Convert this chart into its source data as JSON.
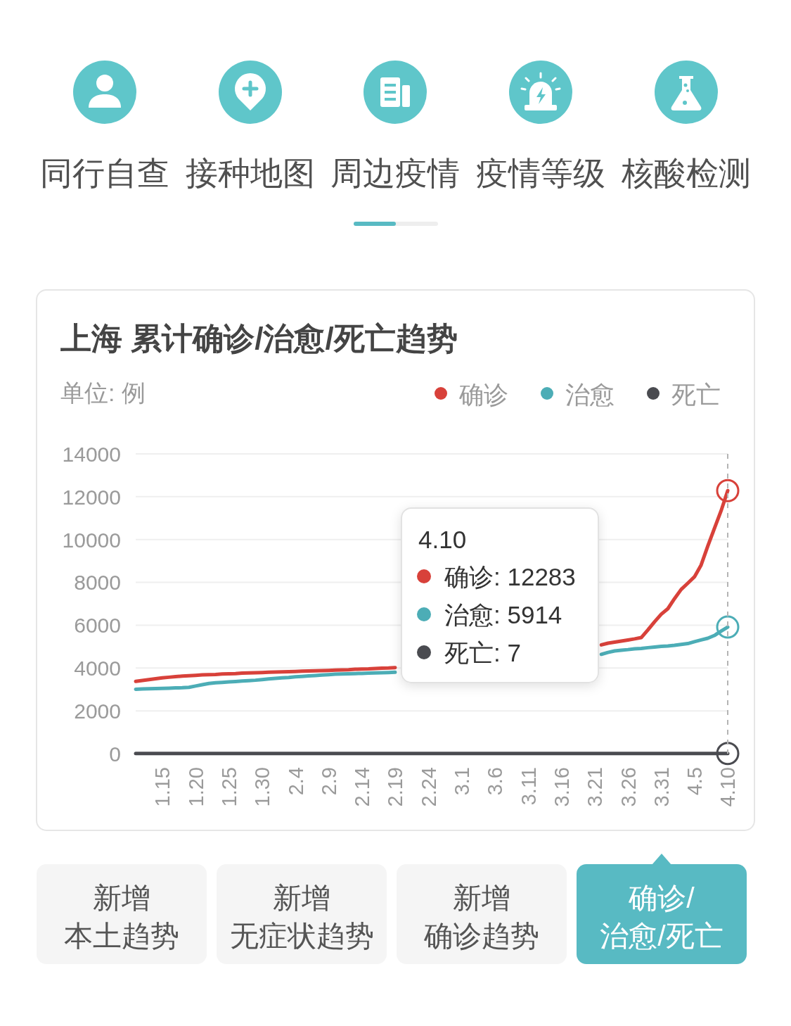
{
  "chart_data": {
    "type": "line",
    "title": "上海 累计确诊/治愈/死亡趋势",
    "ylabel": "单位: 例",
    "x": [
      "--01-11",
      "--01-12",
      "--01-13",
      "--01-14",
      "--01-15",
      "--01-16",
      "--01-17",
      "--01-18",
      "--01-19",
      "--01-20",
      "--01-21",
      "--01-22",
      "--01-23",
      "--01-24",
      "--01-25",
      "--01-26",
      "--01-27",
      "--01-28",
      "--01-29",
      "--01-30",
      "--01-31",
      "--02-01",
      "--02-02",
      "--02-03",
      "--02-04",
      "--02-05",
      "--02-06",
      "--02-07",
      "--02-08",
      "--02-09",
      "--02-10",
      "--02-11",
      "--02-12",
      "--02-13",
      "--02-14",
      "--02-15",
      "--02-16",
      "--02-17",
      "--02-18",
      "--02-19",
      "--02-20",
      "--02-21",
      "--02-22",
      "--02-23",
      "--02-24",
      "--02-25",
      "--02-26",
      "--02-27",
      "--02-28",
      "--03-01",
      "--03-02",
      "--03-03",
      "--03-04",
      "--03-05",
      "--03-06",
      "--03-07",
      "--03-08",
      "--03-09",
      "--03-10",
      "--03-11",
      "--03-12",
      "--03-13",
      "--03-14",
      "--03-15",
      "--03-16",
      "--03-17",
      "--03-18",
      "--03-19",
      "--03-20",
      "--03-21",
      "--03-22",
      "--03-23",
      "--03-24",
      "--03-25",
      "--03-26",
      "--03-27",
      "--03-28",
      "--03-29",
      "--03-30",
      "--03-31",
      "--04-01",
      "--04-02",
      "--04-03",
      "--04-04",
      "--04-05",
      "--04-06",
      "--04-07",
      "--04-08",
      "--04-09",
      "--04-10"
    ],
    "xlim": [
      "--01-11",
      "--04-10"
    ],
    "xticks": [
      {
        "value": "--01-15",
        "label": "1.15"
      },
      {
        "value": "--01-20",
        "label": "1.20"
      },
      {
        "value": "--01-25",
        "label": "1.25"
      },
      {
        "value": "--01-30",
        "label": "1.30"
      },
      {
        "value": "--02-04",
        "label": "2.4"
      },
      {
        "value": "--02-09",
        "label": "2.9"
      },
      {
        "value": "--02-14",
        "label": "2.14"
      },
      {
        "value": "--02-19",
        "label": "2.19"
      },
      {
        "value": "--02-24",
        "label": "2.24"
      },
      {
        "value": "--03-01",
        "label": "3.1"
      },
      {
        "value": "--03-06",
        "label": "3.6"
      },
      {
        "value": "--03-11",
        "label": "3.11"
      },
      {
        "value": "--03-16",
        "label": "3.16"
      },
      {
        "value": "--03-21",
        "label": "3.21"
      },
      {
        "value": "--03-26",
        "label": "3.26"
      },
      {
        "value": "--03-31",
        "label": "3.31"
      },
      {
        "value": "--04-05",
        "label": "4.5"
      },
      {
        "value": "--04-10",
        "label": "4.10"
      }
    ],
    "ylim": [
      0,
      14000
    ],
    "yticks": [
      0,
      2000,
      4000,
      6000,
      8000,
      10000,
      12000,
      14000
    ],
    "grid": "y",
    "legend": "top right",
    "series": [
      {
        "name": "确诊",
        "color": "#d8413a",
        "values": [
          3380,
          3420,
          3460,
          3500,
          3540,
          3570,
          3600,
          3620,
          3640,
          3660,
          3680,
          3690,
          3700,
          3720,
          3730,
          3740,
          3760,
          3770,
          3780,
          3790,
          3800,
          3810,
          3820,
          3830,
          3840,
          3850,
          3860,
          3870,
          3880,
          3890,
          3900,
          3910,
          3920,
          3940,
          3950,
          3960,
          3980,
          3990,
          4000,
          4020,
          null,
          null,
          null,
          null,
          null,
          null,
          null,
          null,
          null,
          null,
          null,
          null,
          null,
          null,
          null,
          null,
          null,
          null,
          null,
          null,
          null,
          null,
          null,
          null,
          null,
          null,
          null,
          null,
          null,
          null,
          5080,
          5160,
          5210,
          5260,
          5310,
          5360,
          5420,
          5780,
          6160,
          6510,
          6770,
          7240,
          7670,
          7960,
          8260,
          8810,
          9690,
          10520,
          11340,
          12283
        ]
      },
      {
        "name": "治愈",
        "color": "#4cadb6",
        "values": [
          3010,
          3020,
          3030,
          3040,
          3050,
          3060,
          3070,
          3080,
          3100,
          3160,
          3220,
          3280,
          3310,
          3330,
          3350,
          3370,
          3390,
          3410,
          3430,
          3460,
          3490,
          3520,
          3540,
          3560,
          3590,
          3610,
          3630,
          3650,
          3670,
          3690,
          3710,
          3720,
          3730,
          3740,
          3750,
          3760,
          3770,
          3780,
          3790,
          3800,
          null,
          null,
          null,
          null,
          null,
          null,
          null,
          null,
          null,
          null,
          null,
          null,
          null,
          null,
          null,
          null,
          null,
          null,
          null,
          null,
          null,
          null,
          null,
          null,
          null,
          null,
          null,
          null,
          null,
          null,
          4640,
          4730,
          4800,
          4830,
          4860,
          4900,
          4910,
          4950,
          4980,
          5010,
          5030,
          5060,
          5100,
          5140,
          5230,
          5310,
          5390,
          5520,
          5720,
          5914
        ]
      },
      {
        "name": "死亡",
        "color": "#4a4b50",
        "values": [
          7,
          7,
          7,
          7,
          7,
          7,
          7,
          7,
          7,
          7,
          7,
          7,
          7,
          7,
          7,
          7,
          7,
          7,
          7,
          7,
          7,
          7,
          7,
          7,
          7,
          7,
          7,
          7,
          7,
          7,
          7,
          7,
          7,
          7,
          7,
          7,
          7,
          7,
          7,
          7,
          7,
          7,
          7,
          7,
          7,
          7,
          7,
          7,
          7,
          7,
          7,
          7,
          7,
          7,
          7,
          7,
          7,
          7,
          7,
          7,
          7,
          7,
          7,
          7,
          7,
          7,
          7,
          7,
          7,
          7,
          7,
          7,
          7,
          7,
          7,
          7,
          7,
          7,
          7,
          7,
          7,
          7,
          7,
          7,
          7,
          7,
          7,
          7,
          7,
          7
        ]
      }
    ],
    "ref_lines": [
      {
        "axis": "x",
        "value": "--04-10",
        "color": "#b4b4b4",
        "line_style": "dashed"
      }
    ],
    "annotations": [
      "同行自查",
      "接种地图",
      "周边疫情",
      "疫情等级",
      "核酸检测",
      "4.10",
      "确诊: 12283",
      "治愈: 5914",
      "死亡: 7",
      "新增",
      "本土趋势",
      "新增",
      "无症状趋势",
      "新增",
      "确诊趋势",
      "确诊/",
      "治愈/死亡"
    ]
  }
}
